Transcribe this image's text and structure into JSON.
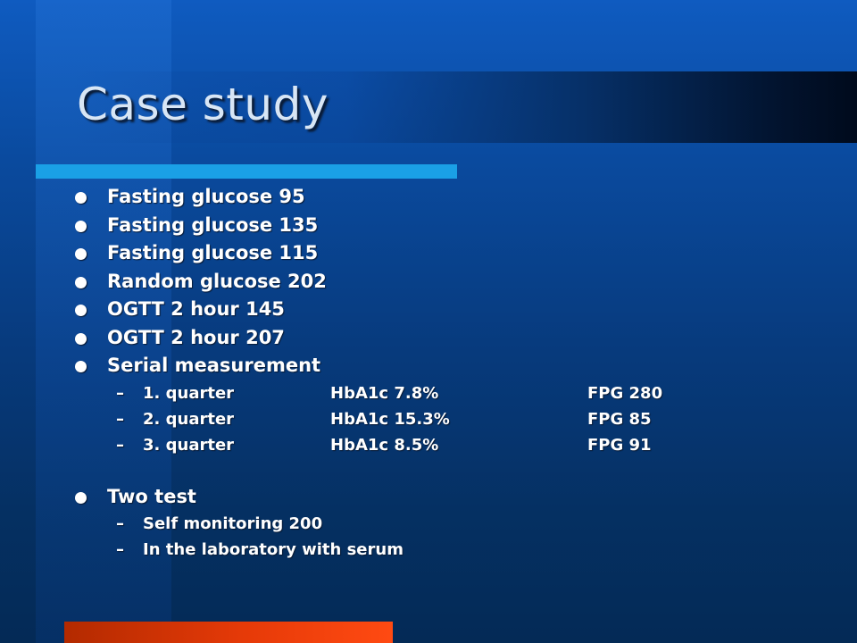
{
  "slide": {
    "title": "Case study"
  },
  "bullets": [
    "Fasting glucose 95",
    "Fasting glucose 135",
    "Fasting glucose 115",
    "Random glucose 202",
    "OGTT 2 hour 145",
    "OGTT 2 hour 207",
    "Serial measurement"
  ],
  "serial": [
    {
      "quarter": "1. quarter",
      "hba1c": "HbA1c 7.8%",
      "fpg": "FPG 280"
    },
    {
      "quarter": "2. quarter",
      "hba1c": "HbA1c 15.3%",
      "fpg": "FPG 85"
    },
    {
      "quarter": "3. quarter",
      "hba1c": "HbA1c 8.5%",
      "fpg": "FPG 91"
    }
  ],
  "two_test": {
    "label": "Two test",
    "items": [
      "Self monitoring 200",
      "In the laboratory with serum"
    ]
  },
  "dash": "–",
  "colors": {
    "background": "#0a4a9e",
    "accent_bar": "#1aa0e6",
    "bottom_bar": "#ff4a12",
    "title_text": "#d8e6f5",
    "body_text": "#ffffff"
  }
}
